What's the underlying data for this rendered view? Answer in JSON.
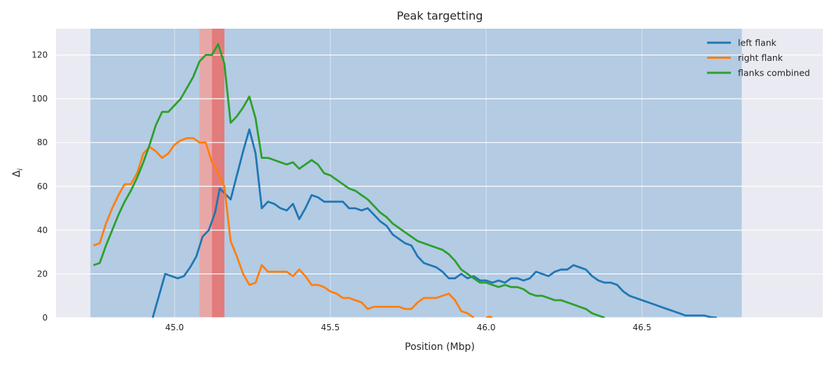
{
  "chart_data": {
    "type": "line",
    "title": "Peak targetting",
    "xlabel": "Position (Mbp)",
    "ylabel": "Δ",
    "ylabel_subscript": "i",
    "xlim": [
      44.62,
      47.08
    ],
    "ylim": [
      0,
      132
    ],
    "xticks": [
      45.0,
      45.5,
      46.0,
      46.5
    ],
    "xtick_labels": [
      "45.0",
      "45.5",
      "46.0",
      "46.5"
    ],
    "yticks": [
      0,
      20,
      40,
      60,
      80,
      100,
      120
    ],
    "ytick_labels": [
      "0",
      "20",
      "40",
      "60",
      "80",
      "100",
      "120"
    ],
    "grid": true,
    "legend_position": "top-right",
    "colors": {
      "background": "#eaeaf2",
      "grid": "#ffffff",
      "region": "#b3cbe3",
      "peak_outer": "#e8a7a7",
      "peak_inner": "#e27c7c"
    },
    "regions": [
      {
        "kind": "analysis-window",
        "x0": 44.73,
        "x1": 46.82
      },
      {
        "kind": "peak-window",
        "x0": 45.08,
        "x1": 45.16
      },
      {
        "kind": "peak-core",
        "x0": 45.12,
        "x1": 45.16
      }
    ],
    "series": [
      {
        "name": "left flank",
        "color": "#1f77b4",
        "points": [
          [
            44.93,
            0
          ],
          [
            44.95,
            10
          ],
          [
            44.97,
            20
          ],
          [
            44.99,
            19
          ],
          [
            45.01,
            18
          ],
          [
            45.03,
            19
          ],
          [
            45.05,
            23
          ],
          [
            45.07,
            28
          ],
          [
            45.09,
            37
          ],
          [
            45.11,
            40
          ],
          [
            45.13,
            48
          ],
          [
            45.145,
            59
          ],
          [
            45.16,
            57
          ],
          [
            45.18,
            54
          ],
          [
            45.2,
            65
          ],
          [
            45.22,
            76
          ],
          [
            45.24,
            86
          ],
          [
            45.26,
            75
          ],
          [
            45.28,
            50
          ],
          [
            45.3,
            53
          ],
          [
            45.32,
            52
          ],
          [
            45.34,
            50
          ],
          [
            45.36,
            49
          ],
          [
            45.38,
            52
          ],
          [
            45.4,
            45
          ],
          [
            45.42,
            50
          ],
          [
            45.44,
            56
          ],
          [
            45.46,
            55
          ],
          [
            45.48,
            53
          ],
          [
            45.5,
            53
          ],
          [
            45.52,
            53
          ],
          [
            45.54,
            53
          ],
          [
            45.56,
            50
          ],
          [
            45.58,
            50
          ],
          [
            45.6,
            49
          ],
          [
            45.62,
            50
          ],
          [
            45.64,
            47
          ],
          [
            45.66,
            44
          ],
          [
            45.68,
            42
          ],
          [
            45.7,
            38
          ],
          [
            45.72,
            36
          ],
          [
            45.74,
            34
          ],
          [
            45.76,
            33
          ],
          [
            45.78,
            28
          ],
          [
            45.8,
            25
          ],
          [
            45.82,
            24
          ],
          [
            45.84,
            23
          ],
          [
            45.86,
            21
          ],
          [
            45.88,
            18
          ],
          [
            45.9,
            18
          ],
          [
            45.92,
            20
          ],
          [
            45.94,
            18
          ],
          [
            45.96,
            19
          ],
          [
            45.98,
            17
          ],
          [
            46.0,
            17
          ],
          [
            46.02,
            16
          ],
          [
            46.04,
            17
          ],
          [
            46.06,
            16
          ],
          [
            46.08,
            18
          ],
          [
            46.1,
            18
          ],
          [
            46.12,
            17
          ],
          [
            46.14,
            18
          ],
          [
            46.16,
            21
          ],
          [
            46.18,
            20
          ],
          [
            46.2,
            19
          ],
          [
            46.22,
            21
          ],
          [
            46.24,
            22
          ],
          [
            46.26,
            22
          ],
          [
            46.28,
            24
          ],
          [
            46.3,
            23
          ],
          [
            46.32,
            22
          ],
          [
            46.34,
            19
          ],
          [
            46.36,
            17
          ],
          [
            46.38,
            16
          ],
          [
            46.4,
            16
          ],
          [
            46.42,
            15
          ],
          [
            46.44,
            12
          ],
          [
            46.46,
            10
          ],
          [
            46.48,
            9
          ],
          [
            46.5,
            8
          ],
          [
            46.52,
            7
          ],
          [
            46.54,
            6
          ],
          [
            46.56,
            5
          ],
          [
            46.58,
            4
          ],
          [
            46.6,
            3
          ],
          [
            46.62,
            2
          ],
          [
            46.64,
            1
          ],
          [
            46.66,
            1
          ],
          [
            46.68,
            1
          ],
          [
            46.7,
            1
          ],
          [
            46.72,
            0.3
          ],
          [
            46.74,
            0
          ]
        ]
      },
      {
        "name": "right flank",
        "color": "#ff7f0e",
        "points": [
          [
            44.74,
            33
          ],
          [
            44.76,
            34
          ],
          [
            44.78,
            43
          ],
          [
            44.8,
            50
          ],
          [
            44.82,
            56
          ],
          [
            44.84,
            61
          ],
          [
            44.86,
            61
          ],
          [
            44.88,
            66
          ],
          [
            44.9,
            75
          ],
          [
            44.92,
            78
          ],
          [
            44.94,
            76
          ],
          [
            44.96,
            73
          ],
          [
            44.98,
            75
          ],
          [
            45.0,
            79
          ],
          [
            45.02,
            81
          ],
          [
            45.04,
            82
          ],
          [
            45.06,
            82
          ],
          [
            45.08,
            80
          ],
          [
            45.1,
            80
          ],
          [
            45.12,
            71
          ],
          [
            45.14,
            66
          ],
          [
            45.16,
            60
          ],
          [
            45.18,
            35
          ],
          [
            45.2,
            28
          ],
          [
            45.22,
            20
          ],
          [
            45.24,
            15
          ],
          [
            45.26,
            16
          ],
          [
            45.28,
            24
          ],
          [
            45.3,
            21
          ],
          [
            45.32,
            21
          ],
          [
            45.34,
            21
          ],
          [
            45.36,
            21
          ],
          [
            45.38,
            19
          ],
          [
            45.4,
            22
          ],
          [
            45.42,
            19
          ],
          [
            45.44,
            15
          ],
          [
            45.46,
            15
          ],
          [
            45.48,
            14
          ],
          [
            45.5,
            12
          ],
          [
            45.52,
            11
          ],
          [
            45.54,
            9
          ],
          [
            45.56,
            9
          ],
          [
            45.58,
            8
          ],
          [
            45.6,
            7
          ],
          [
            45.62,
            4
          ],
          [
            45.64,
            5
          ],
          [
            45.66,
            5
          ],
          [
            45.68,
            5
          ],
          [
            45.7,
            5
          ],
          [
            45.72,
            5
          ],
          [
            45.74,
            4
          ],
          [
            45.76,
            4
          ],
          [
            45.78,
            7
          ],
          [
            45.8,
            9
          ],
          [
            45.82,
            9
          ],
          [
            45.84,
            9
          ],
          [
            45.86,
            10
          ],
          [
            45.88,
            11
          ],
          [
            45.9,
            8
          ],
          [
            45.92,
            3
          ],
          [
            45.94,
            2
          ],
          [
            45.96,
            0
          ]
        ],
        "points_tail": [
          [
            46.0,
            0
          ],
          [
            46.01,
            0.5
          ],
          [
            46.02,
            0
          ]
        ]
      },
      {
        "name": "flanks combined",
        "color": "#2ca02c",
        "points": [
          [
            44.74,
            24
          ],
          [
            44.76,
            25
          ],
          [
            44.78,
            33
          ],
          [
            44.8,
            40
          ],
          [
            44.82,
            47
          ],
          [
            44.84,
            53
          ],
          [
            44.86,
            58
          ],
          [
            44.88,
            64
          ],
          [
            44.9,
            71
          ],
          [
            44.92,
            79
          ],
          [
            44.94,
            88
          ],
          [
            44.96,
            94
          ],
          [
            44.98,
            94
          ],
          [
            45.0,
            97
          ],
          [
            45.02,
            100
          ],
          [
            45.04,
            105
          ],
          [
            45.06,
            110
          ],
          [
            45.08,
            117
          ],
          [
            45.1,
            120
          ],
          [
            45.12,
            120
          ],
          [
            45.14,
            125
          ],
          [
            45.16,
            116
          ],
          [
            45.18,
            89
          ],
          [
            45.2,
            92
          ],
          [
            45.22,
            96
          ],
          [
            45.24,
            101
          ],
          [
            45.26,
            91
          ],
          [
            45.28,
            73
          ],
          [
            45.3,
            73
          ],
          [
            45.32,
            72
          ],
          [
            45.34,
            71
          ],
          [
            45.36,
            70
          ],
          [
            45.38,
            71
          ],
          [
            45.4,
            68
          ],
          [
            45.42,
            70
          ],
          [
            45.44,
            72
          ],
          [
            45.46,
            70
          ],
          [
            45.48,
            66
          ],
          [
            45.5,
            65
          ],
          [
            45.52,
            63
          ],
          [
            45.54,
            61
          ],
          [
            45.56,
            59
          ],
          [
            45.58,
            58
          ],
          [
            45.6,
            56
          ],
          [
            45.62,
            54
          ],
          [
            45.64,
            51
          ],
          [
            45.66,
            48
          ],
          [
            45.68,
            46
          ],
          [
            45.7,
            43
          ],
          [
            45.72,
            41
          ],
          [
            45.74,
            39
          ],
          [
            45.76,
            37
          ],
          [
            45.78,
            35
          ],
          [
            45.8,
            34
          ],
          [
            45.82,
            33
          ],
          [
            45.84,
            32
          ],
          [
            45.86,
            31
          ],
          [
            45.88,
            29
          ],
          [
            45.9,
            26
          ],
          [
            45.92,
            22
          ],
          [
            45.94,
            20
          ],
          [
            45.96,
            18
          ],
          [
            45.98,
            16
          ],
          [
            46.0,
            16
          ],
          [
            46.02,
            15
          ],
          [
            46.04,
            14
          ],
          [
            46.06,
            15
          ],
          [
            46.08,
            14
          ],
          [
            46.1,
            14
          ],
          [
            46.12,
            13
          ],
          [
            46.14,
            11
          ],
          [
            46.16,
            10
          ],
          [
            46.18,
            10
          ],
          [
            46.2,
            9
          ],
          [
            46.22,
            8
          ],
          [
            46.24,
            8
          ],
          [
            46.26,
            7
          ],
          [
            46.28,
            6
          ],
          [
            46.3,
            5
          ],
          [
            46.32,
            4
          ],
          [
            46.34,
            2
          ],
          [
            46.36,
            1
          ],
          [
            46.38,
            0
          ]
        ]
      }
    ]
  }
}
